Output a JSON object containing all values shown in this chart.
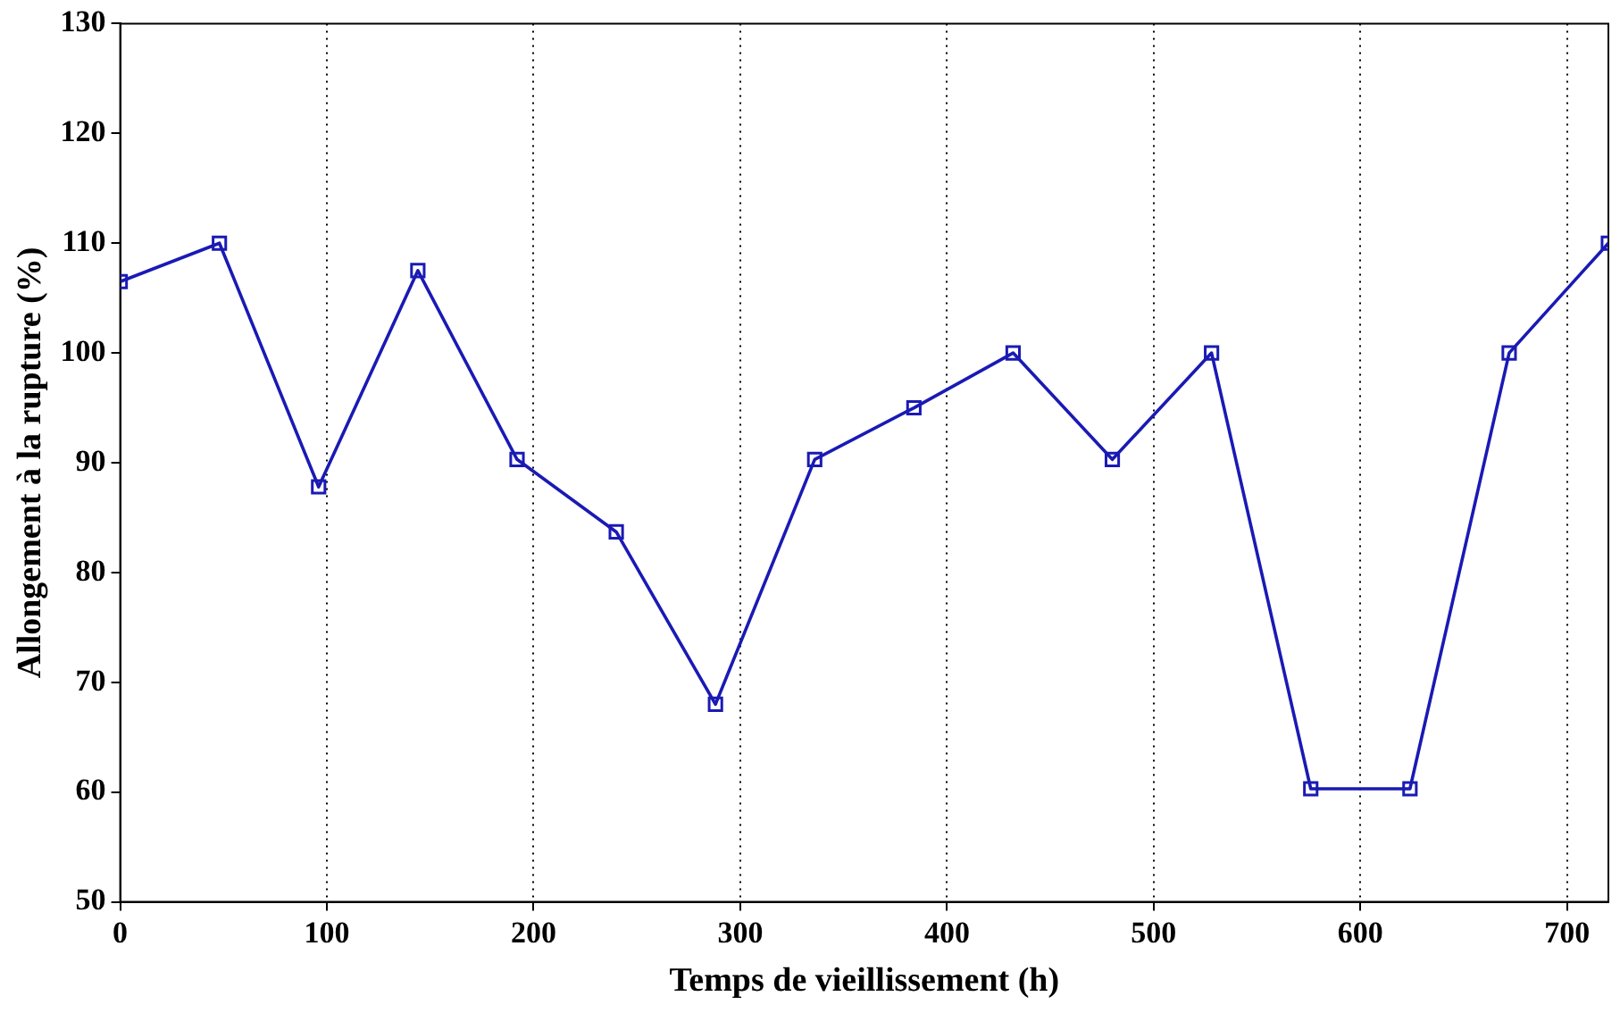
{
  "chart_data": {
    "type": "line",
    "xlabel": "Temps de vieillissement (h)",
    "ylabel": "Allongement à la rupture (%)",
    "x": [
      0,
      48,
      96,
      144,
      192,
      240,
      288,
      336,
      384,
      432,
      480,
      528,
      576,
      624,
      672,
      720
    ],
    "series": [
      {
        "color": "#1a1ab4",
        "values": [
          106.5,
          110,
          87.8,
          107.5,
          90.3,
          83.7,
          68,
          90.3,
          95,
          100,
          90.3,
          100,
          60.3,
          60.3,
          100,
          110
        ]
      }
    ],
    "xlim": [
      0,
      720
    ],
    "xticks": [
      0,
      100,
      200,
      300,
      400,
      500,
      600,
      700
    ],
    "ylim": [
      50,
      130
    ],
    "yticks": [
      50,
      60,
      70,
      80,
      90,
      100,
      110,
      120,
      130
    ],
    "grid": "x",
    "marker": "square",
    "line_style": "solid",
    "legend": false
  }
}
